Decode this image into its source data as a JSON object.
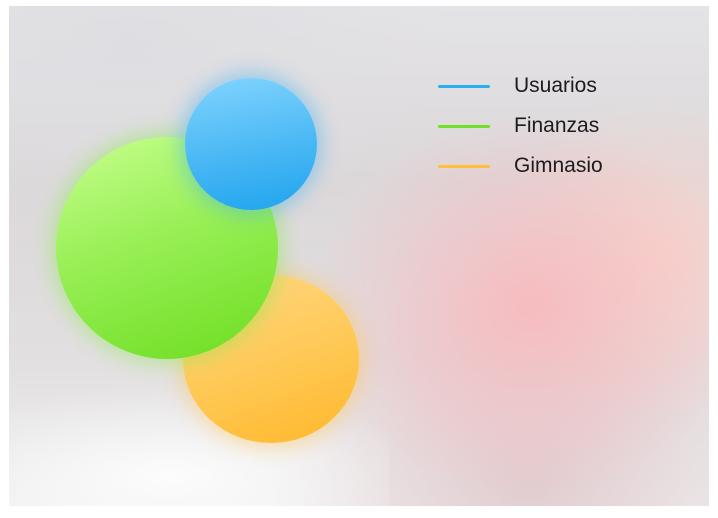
{
  "legend": {
    "items": [
      {
        "label": "Usuarios",
        "color": "#2ab0f0"
      },
      {
        "label": "Finanzas",
        "color": "#6fe02a"
      },
      {
        "label": "Gimnasio",
        "color": "#ffbf3a"
      }
    ]
  },
  "bubbles": [
    {
      "series": "Usuarios",
      "color": "#2ab0f0"
    },
    {
      "series": "Finanzas",
      "color": "#6fe02a"
    },
    {
      "series": "Gimnasio",
      "color": "#ffbf3a"
    }
  ]
}
